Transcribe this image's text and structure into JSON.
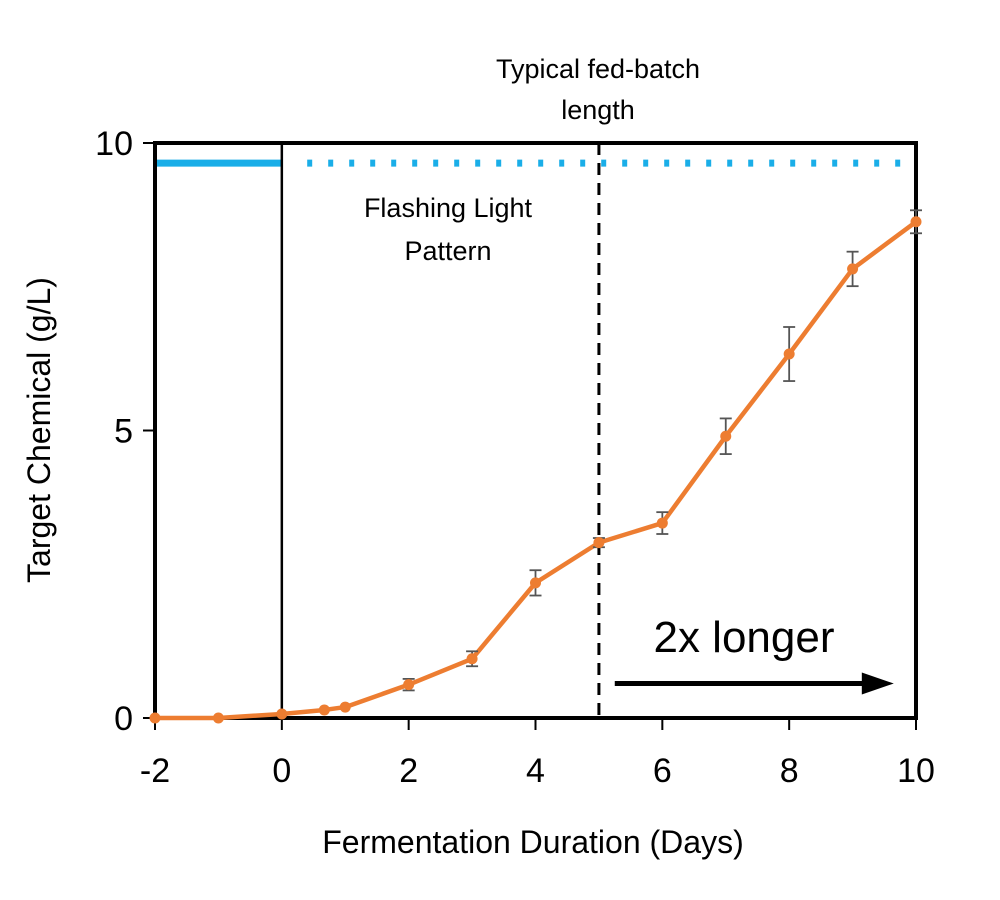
{
  "chart_data": {
    "type": "line",
    "title": "",
    "xlabel": "Fermentation Duration (Days)",
    "ylabel": "Target Chemical (g/L)",
    "xlim": [
      -2,
      10
    ],
    "ylim": [
      0,
      10
    ],
    "xticks": [
      "-2",
      "0",
      "2",
      "4",
      "6",
      "8",
      "10"
    ],
    "yticks": [
      "0",
      "5",
      "10"
    ],
    "grid": false,
    "series": [
      {
        "color": "#ED7D31",
        "x": [
          -2,
          -1,
          0,
          0.67,
          1,
          2,
          3,
          4,
          5,
          6,
          7,
          8,
          9,
          10
        ],
        "y": [
          0,
          0,
          0.07,
          0.14,
          0.19,
          0.58,
          1.03,
          2.35,
          3.05,
          3.39,
          4.9,
          6.33,
          7.81,
          8.63
        ],
        "error": [
          0,
          0,
          0,
          0,
          0,
          0.1,
          0.13,
          0.22,
          0.08,
          0.19,
          0.31,
          0.47,
          0.3,
          0.2
        ]
      }
    ],
    "light_pattern": {
      "color": "#1AAEE8",
      "level": 9.65,
      "solid_range": [
        -2,
        0
      ],
      "dotted_range": [
        0.4,
        10
      ]
    },
    "annotations": {
      "fed_batch_line_x": 5,
      "fed_batch_label_line1": "Typical fed-batch",
      "fed_batch_label_line2": "length",
      "light_label_line1": "Flashing Light",
      "light_label_line2": "Pattern",
      "arrow_text": "2x longer",
      "arrow_range": [
        5.25,
        9.65
      ],
      "arrow_level": 0.6
    },
    "zero_line_x": 0
  }
}
